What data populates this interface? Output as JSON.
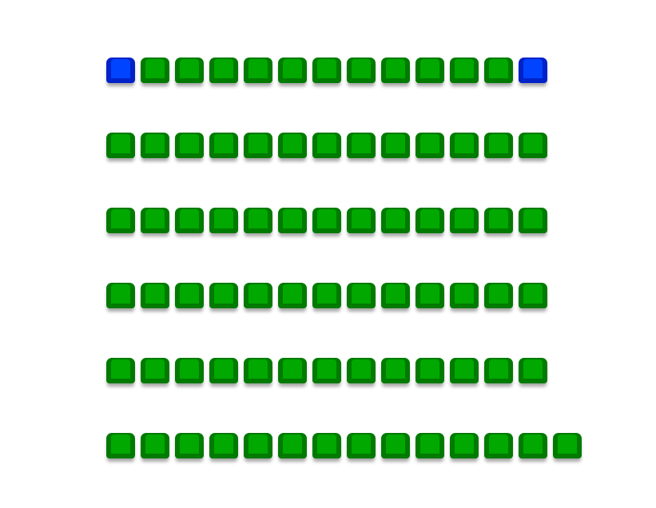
{
  "colors": {
    "available": "#00a800",
    "selected": "#0044ff"
  },
  "rows": [
    [
      "selected",
      "available",
      "available",
      "available",
      "available",
      "available",
      "available",
      "available",
      "available",
      "available",
      "available",
      "available",
      "selected"
    ],
    [
      "available",
      "available",
      "available",
      "available",
      "available",
      "available",
      "available",
      "available",
      "available",
      "available",
      "available",
      "available",
      "available"
    ],
    [
      "available",
      "available",
      "available",
      "available",
      "available",
      "available",
      "available",
      "available",
      "available",
      "available",
      "available",
      "available",
      "available"
    ],
    [
      "available",
      "available",
      "available",
      "available",
      "available",
      "available",
      "available",
      "available",
      "available",
      "available",
      "available",
      "available",
      "available"
    ],
    [
      "available",
      "available",
      "available",
      "available",
      "available",
      "available",
      "available",
      "available",
      "available",
      "available",
      "available",
      "available",
      "available"
    ],
    [
      "available",
      "available",
      "available",
      "available",
      "available",
      "available",
      "available",
      "available",
      "available",
      "available",
      "available",
      "available",
      "available",
      "available"
    ]
  ]
}
